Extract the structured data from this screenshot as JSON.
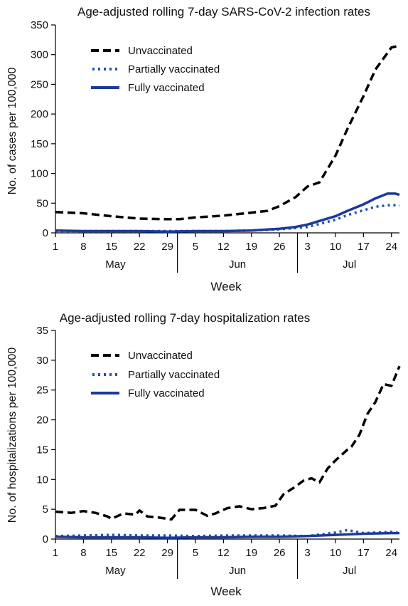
{
  "chart_data": [
    {
      "type": "line",
      "title": "Age-adjusted rolling 7-day SARS-CoV-2 infection rates",
      "xlabel": "Week",
      "ylabel": "No. of cases per 100,000",
      "ylim": [
        0,
        350
      ],
      "yticks": [
        0,
        50,
        100,
        150,
        200,
        250,
        300,
        350
      ],
      "xlim": [
        1,
        87
      ],
      "xticks": [
        1,
        8,
        15,
        22,
        29,
        36,
        43,
        50,
        57,
        64,
        71,
        78,
        85
      ],
      "xtick_labels": [
        "1",
        "8",
        "15",
        "22",
        "29",
        "5",
        "12",
        "19",
        "26",
        "3",
        "10",
        "17",
        "24"
      ],
      "x_unit": "day from May 1, 2021",
      "months": [
        {
          "label": "May",
          "start": 1,
          "end": 31
        },
        {
          "label": "Jun",
          "start": 32,
          "end": 61
        },
        {
          "label": "Jul",
          "start": 62,
          "end": 87
        }
      ],
      "legend_position": "top-left",
      "series": [
        {
          "name": "Unvaccinated",
          "style": "dashed",
          "color": "#000000",
          "x": [
            1,
            8,
            15,
            22,
            29,
            32,
            36,
            43,
            50,
            54,
            57,
            61,
            64,
            67,
            71,
            74,
            78,
            81,
            85,
            87
          ],
          "y": [
            35,
            33,
            28,
            24,
            23,
            23,
            26,
            29,
            34,
            37,
            45,
            60,
            78,
            85,
            130,
            175,
            230,
            275,
            312,
            315
          ]
        },
        {
          "name": "Partially vaccinated",
          "style": "dotted",
          "color": "#1f4fbf",
          "x": [
            1,
            8,
            15,
            22,
            29,
            36,
            43,
            50,
            57,
            61,
            64,
            67,
            71,
            74,
            78,
            81,
            85,
            87
          ],
          "y": [
            3,
            3,
            3,
            3,
            3,
            3,
            3,
            4,
            6,
            8,
            10,
            15,
            22,
            30,
            38,
            44,
            47,
            46
          ]
        },
        {
          "name": "Fully vaccinated",
          "style": "solid",
          "color": "#1a3a9c",
          "x": [
            1,
            8,
            15,
            22,
            29,
            36,
            43,
            50,
            57,
            61,
            64,
            67,
            71,
            74,
            78,
            81,
            84,
            86,
            87
          ],
          "y": [
            4,
            3,
            3,
            3,
            2,
            3,
            3,
            4,
            7,
            10,
            14,
            20,
            28,
            37,
            48,
            58,
            66,
            66,
            64
          ]
        }
      ]
    },
    {
      "type": "line",
      "title": "Age-adjusted rolling 7-day hospitalization rates",
      "xlabel": "Week",
      "ylabel": "No. of hospitalizations per 100,000",
      "ylim": [
        0,
        35
      ],
      "yticks": [
        0,
        5,
        10,
        15,
        20,
        25,
        30,
        35
      ],
      "xlim": [
        1,
        87
      ],
      "xticks": [
        1,
        8,
        15,
        22,
        29,
        36,
        43,
        50,
        57,
        64,
        71,
        78,
        85
      ],
      "xtick_labels": [
        "1",
        "8",
        "15",
        "22",
        "29",
        "5",
        "12",
        "19",
        "26",
        "3",
        "10",
        "17",
        "24"
      ],
      "x_unit": "day from May 1, 2021",
      "months": [
        {
          "label": "May",
          "start": 1,
          "end": 31
        },
        {
          "label": "Jun",
          "start": 32,
          "end": 61
        },
        {
          "label": "Jul",
          "start": 62,
          "end": 87
        }
      ],
      "legend_position": "top-center",
      "series": [
        {
          "name": "Unvaccinated",
          "style": "dashed",
          "color": "#000000",
          "x": [
            1,
            5,
            8,
            11,
            14,
            15,
            18,
            21,
            22,
            24,
            27,
            30,
            32,
            36,
            39,
            41,
            44,
            47,
            50,
            53,
            56,
            58,
            61,
            63,
            65,
            67,
            69,
            71,
            74,
            75,
            77,
            79,
            81,
            83,
            85,
            87
          ],
          "y": [
            4.6,
            4.4,
            4.7,
            4.4,
            3.8,
            3.4,
            4.3,
            4.1,
            4.8,
            3.8,
            3.6,
            3.3,
            4.9,
            4.9,
            3.9,
            4.3,
            5.2,
            5.5,
            5.0,
            5.2,
            5.6,
            7.5,
            8.8,
            9.8,
            10.2,
            9.5,
            11.8,
            13.2,
            15.0,
            15.5,
            17.5,
            21.0,
            23.0,
            26.0,
            25.7,
            29.0
          ]
        },
        {
          "name": "Partially vaccinated",
          "style": "dotted",
          "color": "#1f4fbf",
          "x": [
            1,
            8,
            15,
            22,
            29,
            36,
            43,
            50,
            57,
            64,
            71,
            74,
            78,
            81,
            85,
            87
          ],
          "y": [
            0.5,
            0.6,
            0.7,
            0.6,
            0.6,
            0.5,
            0.6,
            0.6,
            0.6,
            0.5,
            1.1,
            1.5,
            1.0,
            1.1,
            1.2,
            1.0
          ]
        },
        {
          "name": "Fully vaccinated",
          "style": "solid",
          "color": "#1a3a9c",
          "x": [
            1,
            8,
            15,
            22,
            29,
            36,
            43,
            50,
            57,
            64,
            71,
            78,
            85,
            87
          ],
          "y": [
            0.4,
            0.3,
            0.3,
            0.3,
            0.2,
            0.3,
            0.3,
            0.4,
            0.4,
            0.5,
            0.7,
            0.9,
            1.0,
            1.0
          ]
        }
      ]
    }
  ]
}
